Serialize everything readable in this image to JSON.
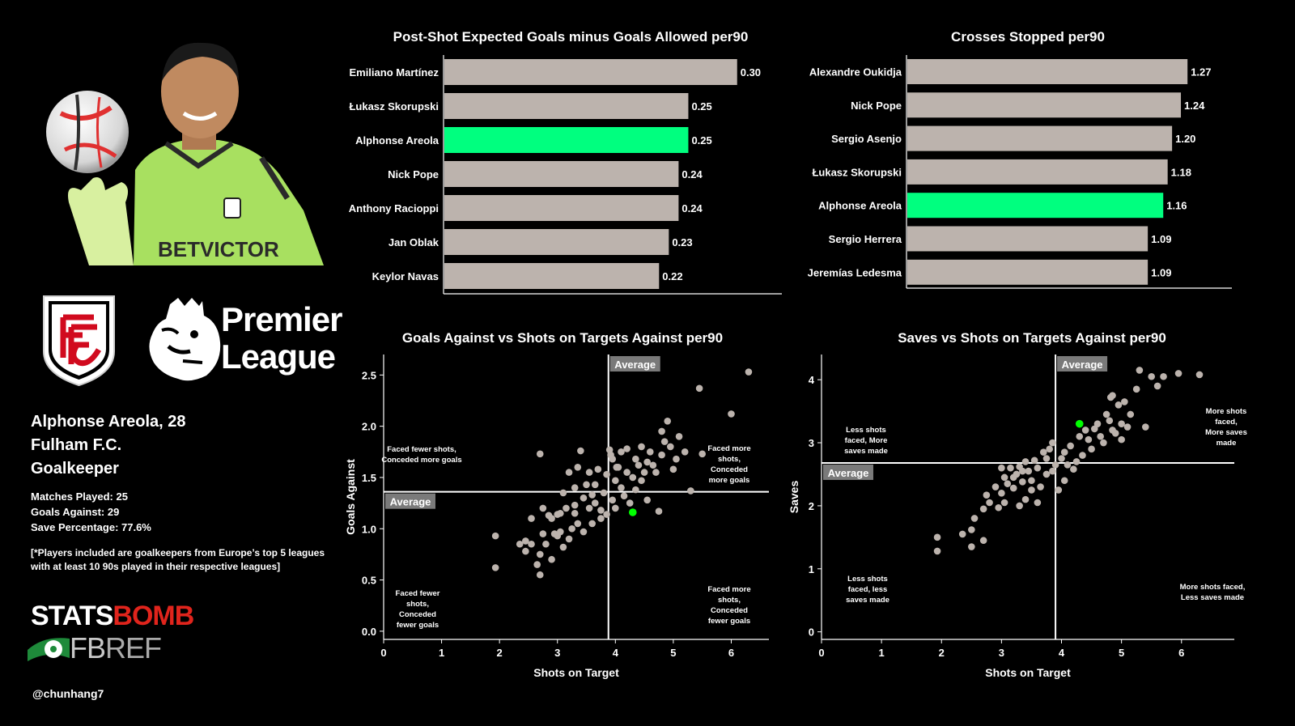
{
  "player": {
    "name_line": "Alphonse Areola, 28",
    "club": "Fulham F.C.",
    "position": "Goalkeeper",
    "matches": "Matches Played: 25",
    "goals_against": "Goals Against: 29",
    "save_pct": "Save Percentage: 77.6%",
    "note": "[*Players included are goalkeepers from Europe’s top 5 leagues with at least 10 90s played in their respective leagues]"
  },
  "league_logo": {
    "line1": "Premier",
    "line2": "League"
  },
  "credits": {
    "statsbomb_a": "STATS",
    "statsbomb_b": "BOMB",
    "fbref_a": "FB",
    "fbref_b": "REF",
    "handle": "@chunhang7"
  },
  "colors": {
    "bar": "#bcb3ad",
    "highlight": "#00ff7f",
    "point": "#bcb3ad",
    "point_highlight": "#00ff00",
    "background": "#000000"
  },
  "chart_data": [
    {
      "type": "bar",
      "title": "Post-Shot Expected Goals minus Goals Allowed per90",
      "categories": [
        "Emiliano Martínez",
        "Łukasz Skorupski",
        "Alphonse Areola",
        "Nick Pope",
        "Anthony Racioppi",
        "Jan Oblak",
        "Keylor Navas"
      ],
      "values": [
        0.3,
        0.25,
        0.25,
        0.24,
        0.24,
        0.23,
        0.22
      ],
      "labels": [
        "0.30",
        "0.25",
        "0.25",
        "0.24",
        "0.24",
        "0.23",
        "0.22"
      ],
      "highlight": "Alphonse Areola",
      "xlim": [
        0,
        0.345
      ]
    },
    {
      "type": "bar",
      "title": "Crosses Stopped per90",
      "categories": [
        "Alexandre Oukidja",
        "Nick Pope",
        "Sergio Asenjo",
        "Łukasz Skorupski",
        "Alphonse Areola",
        "Sergio Herrera",
        "Jeremías Ledesma"
      ],
      "values": [
        1.27,
        1.24,
        1.2,
        1.18,
        1.16,
        1.09,
        1.09
      ],
      "labels": [
        "1.27",
        "1.24",
        "1.20",
        "1.18",
        "1.16",
        "1.09",
        "1.09"
      ],
      "highlight": "Alphonse Areola",
      "xlim": [
        0,
        1.46
      ]
    },
    {
      "type": "scatter",
      "title": "Goals Against vs Shots on Targets Against per90",
      "xlabel": "Shots on Target",
      "ylabel": "Goals Against",
      "xlim": [
        0,
        6.65
      ],
      "ylim": [
        -0.08,
        2.7
      ],
      "xticks": [
        0,
        1,
        2,
        3,
        4,
        5,
        6
      ],
      "yticks": [
        0.0,
        0.5,
        1.0,
        1.5,
        2.0,
        2.5
      ],
      "ytick_labels": [
        "0.0",
        "0.5",
        "1.0",
        "1.5",
        "2.0",
        "2.5"
      ],
      "avg_x": 3.88,
      "avg_y": 1.36,
      "avg_label": "Average",
      "highlight_point": [
        4.3,
        1.16
      ],
      "quadrant_labels": {
        "top_left": [
          "Faced fewer shots,",
          "Conceded more goals"
        ],
        "top_right": [
          "Faced more",
          "shots,",
          "Conceded",
          "more goals"
        ],
        "bottom_left": [
          "Faced fewer",
          "shots,",
          "Conceded",
          "fewer goals"
        ],
        "bottom_right": [
          "Faced more",
          "shots,",
          "Conceded",
          "fewer goals"
        ]
      },
      "points": [
        [
          1.93,
          0.62
        ],
        [
          1.93,
          0.93
        ],
        [
          2.35,
          0.85
        ],
        [
          2.45,
          0.88
        ],
        [
          2.45,
          0.78
        ],
        [
          2.55,
          1.1
        ],
        [
          2.55,
          0.85
        ],
        [
          2.65,
          0.65
        ],
        [
          2.7,
          0.75
        ],
        [
          2.7,
          0.55
        ],
        [
          2.7,
          1.73
        ],
        [
          2.75,
          0.95
        ],
        [
          2.75,
          1.2
        ],
        [
          2.8,
          0.85
        ],
        [
          2.85,
          1.13
        ],
        [
          2.9,
          1.1
        ],
        [
          2.9,
          0.7
        ],
        [
          2.95,
          0.95
        ],
        [
          3.0,
          1.14
        ],
        [
          3.0,
          0.93
        ],
        [
          3.05,
          0.97
        ],
        [
          3.05,
          1.15
        ],
        [
          3.1,
          0.82
        ],
        [
          3.1,
          1.35
        ],
        [
          3.15,
          1.2
        ],
        [
          3.2,
          1.55
        ],
        [
          3.2,
          0.9
        ],
        [
          3.25,
          1.0
        ],
        [
          3.3,
          1.23
        ],
        [
          3.3,
          1.4
        ],
        [
          3.35,
          1.6
        ],
        [
          3.35,
          1.05
        ],
        [
          3.4,
          1.76
        ],
        [
          3.45,
          1.3
        ],
        [
          3.45,
          0.97
        ],
        [
          3.5,
          1.43
        ],
        [
          3.55,
          1.55
        ],
        [
          3.55,
          1.2
        ],
        [
          3.6,
          1.33
        ],
        [
          3.65,
          1.43
        ],
        [
          3.65,
          1.25
        ],
        [
          3.7,
          1.58
        ],
        [
          3.75,
          1.1
        ],
        [
          3.75,
          1.18
        ],
        [
          3.8,
          1.35
        ],
        [
          3.85,
          1.53
        ],
        [
          3.85,
          1.14
        ],
        [
          3.9,
          1.77
        ],
        [
          3.95,
          1.68
        ],
        [
          3.95,
          1.28
        ],
        [
          4.0,
          1.47
        ],
        [
          4.0,
          1.2
        ],
        [
          4.05,
          1.6
        ],
        [
          4.1,
          1.4
        ],
        [
          4.1,
          1.75
        ],
        [
          4.15,
          1.32
        ],
        [
          4.2,
          1.55
        ],
        [
          4.2,
          1.78
        ],
        [
          4.25,
          1.25
        ],
        [
          4.3,
          1.5
        ],
        [
          4.35,
          1.68
        ],
        [
          4.35,
          1.38
        ],
        [
          4.4,
          1.62
        ],
        [
          4.45,
          1.8
        ],
        [
          4.45,
          1.47
        ],
        [
          4.5,
          1.55
        ],
        [
          4.55,
          1.28
        ],
        [
          4.55,
          1.65
        ],
        [
          4.6,
          1.75
        ],
        [
          4.65,
          1.62
        ],
        [
          4.7,
          1.55
        ],
        [
          4.75,
          1.17
        ],
        [
          4.8,
          1.95
        ],
        [
          4.8,
          1.72
        ],
        [
          4.85,
          1.85
        ],
        [
          4.9,
          2.05
        ],
        [
          4.95,
          1.8
        ],
        [
          5.0,
          1.58
        ],
        [
          5.05,
          1.68
        ],
        [
          5.1,
          1.9
        ],
        [
          5.2,
          1.75
        ],
        [
          5.3,
          1.37
        ],
        [
          5.45,
          2.37
        ],
        [
          5.5,
          1.73
        ],
        [
          6.0,
          2.12
        ],
        [
          6.3,
          2.53
        ],
        [
          4.02,
          1.6
        ],
        [
          3.6,
          1.05
        ],
        [
          3.3,
          1.15
        ],
        [
          3.92,
          1.72
        ]
      ]
    },
    {
      "type": "scatter",
      "title": "Saves vs Shots on Targets Against per90",
      "xlabel": "Shots on Target",
      "ylabel": "Saves",
      "xlim": [
        0,
        6.88
      ],
      "ylim": [
        -0.12,
        4.4
      ],
      "xticks": [
        0,
        1,
        2,
        3,
        4,
        5,
        6
      ],
      "yticks": [
        0,
        1,
        2,
        3,
        4
      ],
      "ytick_labels": [
        "0",
        "1",
        "2",
        "3",
        "4"
      ],
      "avg_x": 3.9,
      "avg_y": 2.68,
      "avg_label": "Average",
      "highlight_point": [
        4.3,
        3.3
      ],
      "quadrant_labels": {
        "top_left": [
          "Less shots",
          "faced, More",
          "saves made"
        ],
        "top_right": [
          "More shots",
          "faced,",
          "More saves",
          "made"
        ],
        "bottom_left": [
          "Less shots",
          "faced, less",
          "saves made"
        ],
        "bottom_right": [
          "More shots faced,",
          "Less saves made"
        ]
      },
      "points": [
        [
          1.93,
          1.28
        ],
        [
          1.93,
          1.5
        ],
        [
          2.35,
          1.55
        ],
        [
          2.5,
          1.35
        ],
        [
          2.5,
          1.62
        ],
        [
          2.55,
          1.8
        ],
        [
          2.7,
          1.45
        ],
        [
          2.7,
          1.95
        ],
        [
          2.75,
          2.17
        ],
        [
          2.8,
          2.05
        ],
        [
          2.9,
          2.3
        ],
        [
          2.95,
          1.97
        ],
        [
          3.0,
          2.2
        ],
        [
          3.05,
          2.45
        ],
        [
          3.05,
          2.05
        ],
        [
          3.1,
          2.35
        ],
        [
          3.15,
          2.6
        ],
        [
          3.2,
          2.28
        ],
        [
          3.25,
          2.5
        ],
        [
          3.3,
          2.0
        ],
        [
          3.3,
          2.62
        ],
        [
          3.35,
          2.38
        ],
        [
          3.4,
          2.7
        ],
        [
          3.4,
          2.1
        ],
        [
          3.45,
          2.55
        ],
        [
          3.5,
          2.4
        ],
        [
          3.55,
          2.72
        ],
        [
          3.6,
          2.05
        ],
        [
          3.6,
          2.6
        ],
        [
          3.65,
          2.3
        ],
        [
          3.7,
          2.85
        ],
        [
          3.75,
          2.5
        ],
        [
          3.75,
          2.75
        ],
        [
          3.8,
          2.9
        ],
        [
          3.85,
          2.55
        ],
        [
          3.85,
          3.0
        ],
        [
          3.9,
          2.65
        ],
        [
          3.95,
          2.25
        ],
        [
          4.0,
          2.75
        ],
        [
          4.05,
          2.4
        ],
        [
          4.05,
          2.85
        ],
        [
          4.1,
          2.65
        ],
        [
          4.15,
          2.95
        ],
        [
          4.2,
          2.58
        ],
        [
          4.25,
          2.7
        ],
        [
          4.3,
          3.1
        ],
        [
          4.35,
          2.8
        ],
        [
          4.4,
          3.2
        ],
        [
          4.45,
          3.05
        ],
        [
          4.5,
          2.9
        ],
        [
          4.55,
          3.22
        ],
        [
          4.6,
          3.3
        ],
        [
          4.65,
          3.1
        ],
        [
          4.7,
          3.0
        ],
        [
          4.75,
          3.45
        ],
        [
          4.8,
          3.35
        ],
        [
          4.85,
          3.75
        ],
        [
          4.85,
          3.2
        ],
        [
          4.9,
          3.15
        ],
        [
          4.95,
          3.6
        ],
        [
          5.0,
          3.3
        ],
        [
          5.0,
          3.05
        ],
        [
          5.05,
          3.65
        ],
        [
          5.1,
          3.25
        ],
        [
          5.15,
          3.45
        ],
        [
          5.25,
          3.85
        ],
        [
          5.3,
          4.15
        ],
        [
          5.4,
          3.25
        ],
        [
          5.5,
          4.05
        ],
        [
          5.6,
          3.9
        ],
        [
          5.7,
          4.05
        ],
        [
          5.95,
          4.1
        ],
        [
          6.3,
          4.08
        ],
        [
          4.82,
          3.72
        ],
        [
          3.35,
          2.55
        ],
        [
          3.0,
          2.6
        ],
        [
          3.5,
          2.25
        ],
        [
          3.2,
          2.45
        ]
      ]
    }
  ]
}
